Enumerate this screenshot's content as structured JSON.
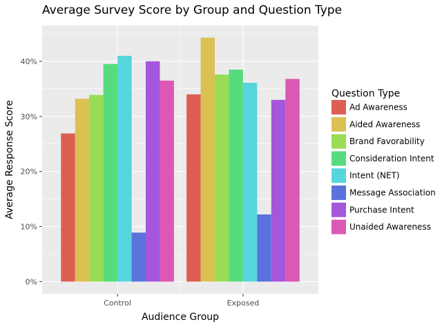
{
  "chart_data": {
    "type": "bar",
    "title": "Average Survey Score by Group and Question Type",
    "xlabel": "Audience Group",
    "ylabel": "Average Response Score",
    "categories": [
      "Control",
      "Exposed"
    ],
    "ylim": [
      -2.2,
      46.5
    ],
    "y_ticks": [
      0,
      10,
      20,
      30,
      40
    ],
    "y_tick_labels": [
      "0%",
      "10%",
      "20%",
      "30%",
      "40%"
    ],
    "grid": true,
    "legend_title": "Question Type",
    "legend_position": "right",
    "series": [
      {
        "name": "Ad Awareness",
        "values": [
          26.9,
          34.0
        ],
        "color": "#dd5f53"
      },
      {
        "name": "Aided Awareness",
        "values": [
          33.2,
          44.3
        ],
        "color": "#dbc154"
      },
      {
        "name": "Brand Favorability",
        "values": [
          33.9,
          37.6
        ],
        "color": "#99dc55"
      },
      {
        "name": "Consideration Intent",
        "values": [
          39.5,
          38.5
        ],
        "color": "#56dc7e"
      },
      {
        "name": "Intent (NET)",
        "values": [
          41.0,
          36.1
        ],
        "color": "#56d5dc"
      },
      {
        "name": "Message Association",
        "values": [
          8.9,
          12.2
        ],
        "color": "#5b72dc"
      },
      {
        "name": "Purchase Intent",
        "values": [
          40.0,
          33.0
        ],
        "color": "#a457dc"
      },
      {
        "name": "Unaided Awareness",
        "values": [
          36.5,
          36.8
        ],
        "color": "#dc58b5"
      }
    ]
  }
}
